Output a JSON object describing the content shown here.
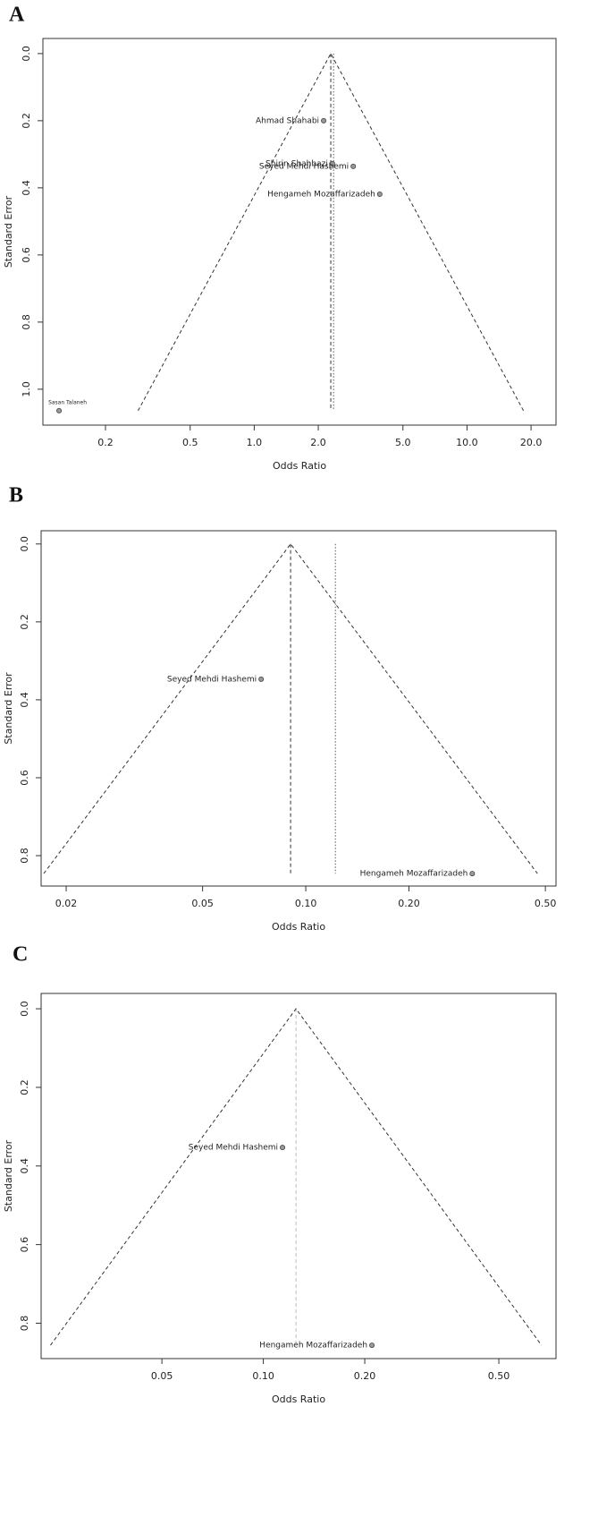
{
  "chart_data": [
    {
      "type": "scatter",
      "panel_label": "A",
      "xlabel": "Odds Ratio",
      "ylabel": "Standard Error",
      "xscale": "log",
      "yreversed": true,
      "funnel": true,
      "labels": [
        "Ahmad Shahabi",
        "Shirin Shahbazi",
        "Seyed Mehdi Hashemi",
        "Hengameh Mozaffarizadeh",
        "Sasan Talaneh"
      ],
      "x": [
        2.12,
        2.33,
        2.92,
        3.89,
        0.121
      ],
      "y": [
        0.2,
        0.328,
        0.336,
        0.419,
        1.064
      ],
      "summary_lines": [
        {
          "value": 2.29,
          "style": "dashed",
          "color": "#333333"
        },
        {
          "value": 2.36,
          "style": "dotted",
          "color": "#555555"
        }
      ],
      "xlim": [
        0.1016,
        26.2
      ],
      "ylim": [
        -0.045,
        1.107
      ],
      "xticks": [
        0.2,
        0.5,
        {
          "value": 1,
          "label": "1.0"
        },
        {
          "value": 2,
          "label": "2.0"
        },
        {
          "value": 5,
          "label": "5.0"
        },
        {
          "value": 10,
          "label": "10.0"
        },
        {
          "value": 20,
          "label": "20.0"
        }
      ],
      "yticks": [
        {
          "value": 0,
          "label": "0.0"
        },
        0.2,
        0.4,
        0.6,
        0.8,
        {
          "value": 1,
          "label": "1.0"
        }
      ]
    },
    {
      "type": "scatter",
      "panel_label": "B",
      "xlabel": "Odds Ratio",
      "ylabel": "Standard Error",
      "xscale": "log",
      "yreversed": true,
      "funnel": true,
      "labels": [
        "Seyed Mehdi Hashemi",
        "Hengameh Mozaffarizadeh"
      ],
      "x": [
        0.0741,
        0.306
      ],
      "y": [
        0.347,
        0.846
      ],
      "summary_lines": [
        {
          "value": 0.0903,
          "style": "dashed",
          "color": "#333333"
        },
        {
          "value": 0.122,
          "style": "dotted",
          "color": "#555555"
        }
      ],
      "xlim": [
        0.0169,
        0.537
      ],
      "ylim": [
        -0.034,
        0.878
      ],
      "xticks": [
        0.02,
        0.05,
        {
          "value": 0.1,
          "label": "0.10"
        },
        {
          "value": 0.2,
          "label": "0.20"
        },
        {
          "value": 0.5,
          "label": "0.50"
        }
      ],
      "yticks": [
        {
          "value": 0,
          "label": "0.0"
        },
        0.2,
        0.4,
        0.6,
        0.8
      ]
    },
    {
      "type": "scatter",
      "panel_label": "C",
      "xlabel": "Odds Ratio",
      "ylabel": "Standard Error",
      "xscale": "log",
      "yreversed": true,
      "funnel": true,
      "labels": [
        "Seyed Mehdi Hashemi",
        "Hengameh Mozaffarizadeh"
      ],
      "x": [
        0.114,
        0.21
      ],
      "y": [
        0.353,
        0.856
      ],
      "summary_lines": [
        {
          "value": 0.125,
          "style": "dashed",
          "color": "#bbbbbb"
        }
      ],
      "xlim": [
        0.0219,
        0.739
      ],
      "ylim": [
        -0.039,
        0.89
      ],
      "xticks": [
        0.05,
        {
          "value": 0.1,
          "label": "0.10"
        },
        {
          "value": 0.2,
          "label": "0.20"
        },
        {
          "value": 0.5,
          "label": "0.50"
        }
      ],
      "yticks": [
        {
          "value": 0,
          "label": "0.0"
        },
        0.2,
        0.4,
        0.6,
        0.8
      ]
    }
  ]
}
